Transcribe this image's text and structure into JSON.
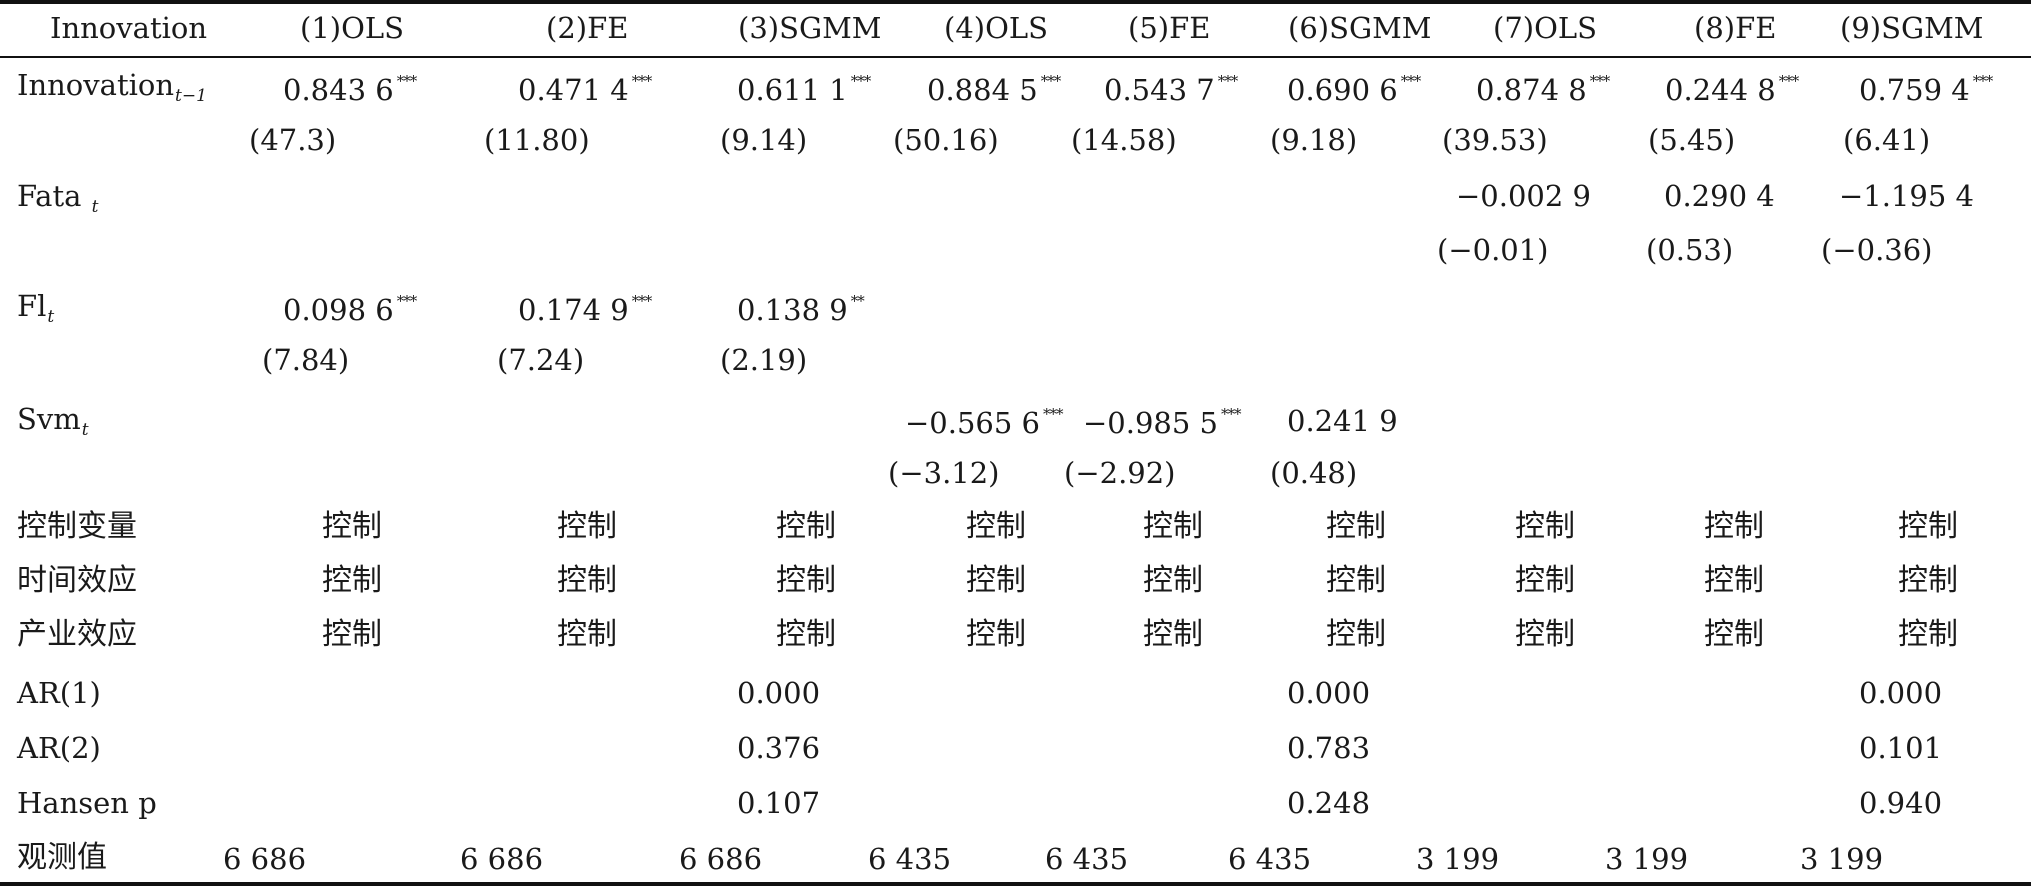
{
  "table": {
    "header": {
      "corner": "Innovation",
      "columns": [
        "(1)OLS",
        "(2)FE",
        "(3)SGMM",
        "(4)OLS",
        "(5)FE",
        "(6)SGMM",
        "(7)OLS",
        "(8)FE",
        "(9)SGMM"
      ]
    },
    "rows": {
      "innovation": {
        "label": "Innovation",
        "sub": "t−1",
        "coef": [
          "0.843 6",
          "0.471 4",
          "0.611 1",
          "0.884 5",
          "0.543 7",
          "0.690 6",
          "0.874 8",
          "0.244 8",
          "0.759 4"
        ],
        "stars": [
          "***",
          "***",
          "***",
          "***",
          "***",
          "***",
          "***",
          "***",
          "***"
        ],
        "t": [
          "(47.3)",
          "(11.80)",
          "(9.14)",
          "(50.16)",
          "(14.58)",
          "(9.18)",
          "(39.53)",
          "(5.45)",
          "(6.41)"
        ]
      },
      "fata": {
        "label": "Fata",
        "sub": "t",
        "coef": [
          "−0.002 9",
          "0.290 4",
          "−1.195 4"
        ],
        "t": [
          "(−0.01)",
          "(0.53)",
          "(−0.36)"
        ]
      },
      "fl": {
        "label": "Fl",
        "sub": "t",
        "coef": [
          "0.098 6",
          "0.174 9",
          "0.138 9"
        ],
        "stars": [
          "***",
          "***",
          "**"
        ],
        "t": [
          "(7.84)",
          "(7.24)",
          "(2.19)"
        ]
      },
      "svm": {
        "label": "Svm",
        "sub": "t",
        "coef": [
          "−0.565 6",
          "−0.985 5",
          "0.241 9"
        ],
        "stars": [
          "***",
          "***",
          ""
        ],
        "t": [
          "(−3.12)",
          "(−2.92)",
          "(0.48)"
        ]
      },
      "controls": {
        "label": "控制变量",
        "value": "控制"
      },
      "time_effect": {
        "label": "时间效应",
        "value": "控制"
      },
      "industry_effect": {
        "label": "产业效应",
        "value": "控制"
      },
      "ar1": {
        "label": "AR(1)",
        "values": [
          "0.000",
          "0.000",
          "0.000"
        ]
      },
      "ar2": {
        "label": "AR(2)",
        "values": [
          "0.376",
          "0.783",
          "0.101"
        ]
      },
      "hansen": {
        "label": "Hansen p",
        "values": [
          "0.107",
          "0.248",
          "0.940"
        ]
      },
      "obs": {
        "label": "观测值",
        "values": [
          "6 686",
          "6 686",
          "6 686",
          "6 435",
          "6 435",
          "6 435",
          "3 199",
          "3 199",
          "3 199"
        ]
      }
    }
  }
}
